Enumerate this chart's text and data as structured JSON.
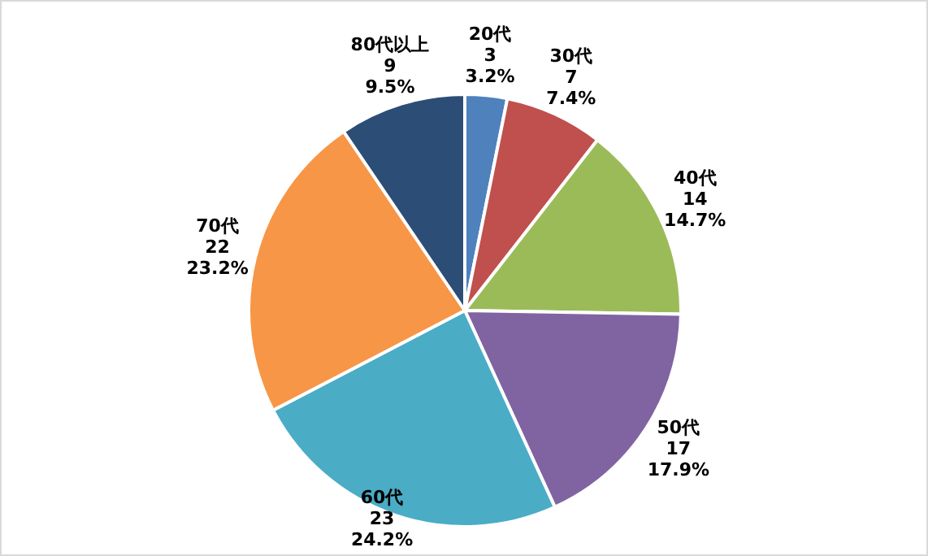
{
  "chart_data": {
    "type": "pie",
    "categories": [
      "20代",
      "30代",
      "40代",
      "50代",
      "60代",
      "70代",
      "80代以上"
    ],
    "values": [
      3,
      7,
      14,
      17,
      23,
      22,
      9
    ],
    "colors": [
      "#4f81bd",
      "#c0504d",
      "#9bbb59",
      "#8064a2",
      "#4bacc6",
      "#f79646",
      "#2c4d75"
    ],
    "value_labels": [
      "3\n3.2%",
      "7\n7.4%",
      "14\n14.7%",
      "17\n17.9%",
      "23\n24.2%",
      "22\n23.2%",
      "9\n9.5%"
    ],
    "legend": false
  }
}
